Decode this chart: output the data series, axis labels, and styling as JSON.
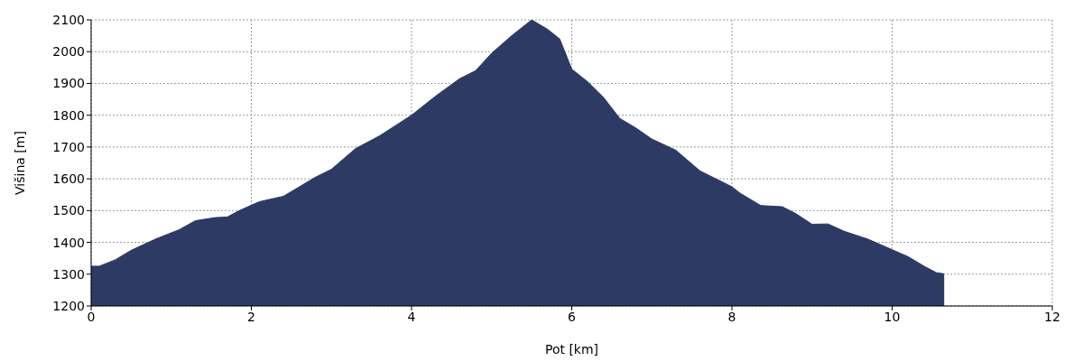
{
  "chart_data": {
    "type": "area",
    "xlabel": "Pot [km]",
    "ylabel": "Višina [m]",
    "color": "#2c3a64",
    "x": [
      0,
      0.1,
      0.3,
      0.5,
      0.8,
      1.1,
      1.3,
      1.55,
      1.7,
      1.85,
      2.1,
      2.4,
      2.6,
      2.8,
      3.0,
      3.3,
      3.6,
      4.0,
      4.3,
      4.6,
      4.8,
      5.0,
      5.25,
      5.5,
      5.7,
      5.85,
      6.0,
      6.2,
      6.4,
      6.6,
      6.8,
      7.0,
      7.3,
      7.6,
      8.0,
      8.1,
      8.36,
      8.63,
      8.8,
      9.0,
      9.2,
      9.4,
      9.7,
      10.0,
      10.2,
      10.4,
      10.55,
      10.65
    ],
    "values": [
      1325,
      1325,
      1345,
      1375,
      1410,
      1440,
      1468,
      1478,
      1480,
      1500,
      1528,
      1545,
      1575,
      1605,
      1630,
      1695,
      1735,
      1800,
      1860,
      1915,
      1940,
      1995,
      2050,
      2100,
      2070,
      2040,
      1945,
      1905,
      1855,
      1790,
      1760,
      1725,
      1690,
      1625,
      1575,
      1555,
      1516,
      1512,
      1490,
      1457,
      1458,
      1435,
      1410,
      1377,
      1355,
      1325,
      1305,
      1301
    ],
    "xlim": [
      0,
      12
    ],
    "xticks": [
      0,
      2,
      4,
      6,
      8,
      10,
      12
    ],
    "ylim": [
      1200,
      2100
    ],
    "yticks": [
      1200,
      1300,
      1400,
      1500,
      1600,
      1700,
      1800,
      1900,
      2000,
      2100
    ],
    "grid": true
  }
}
